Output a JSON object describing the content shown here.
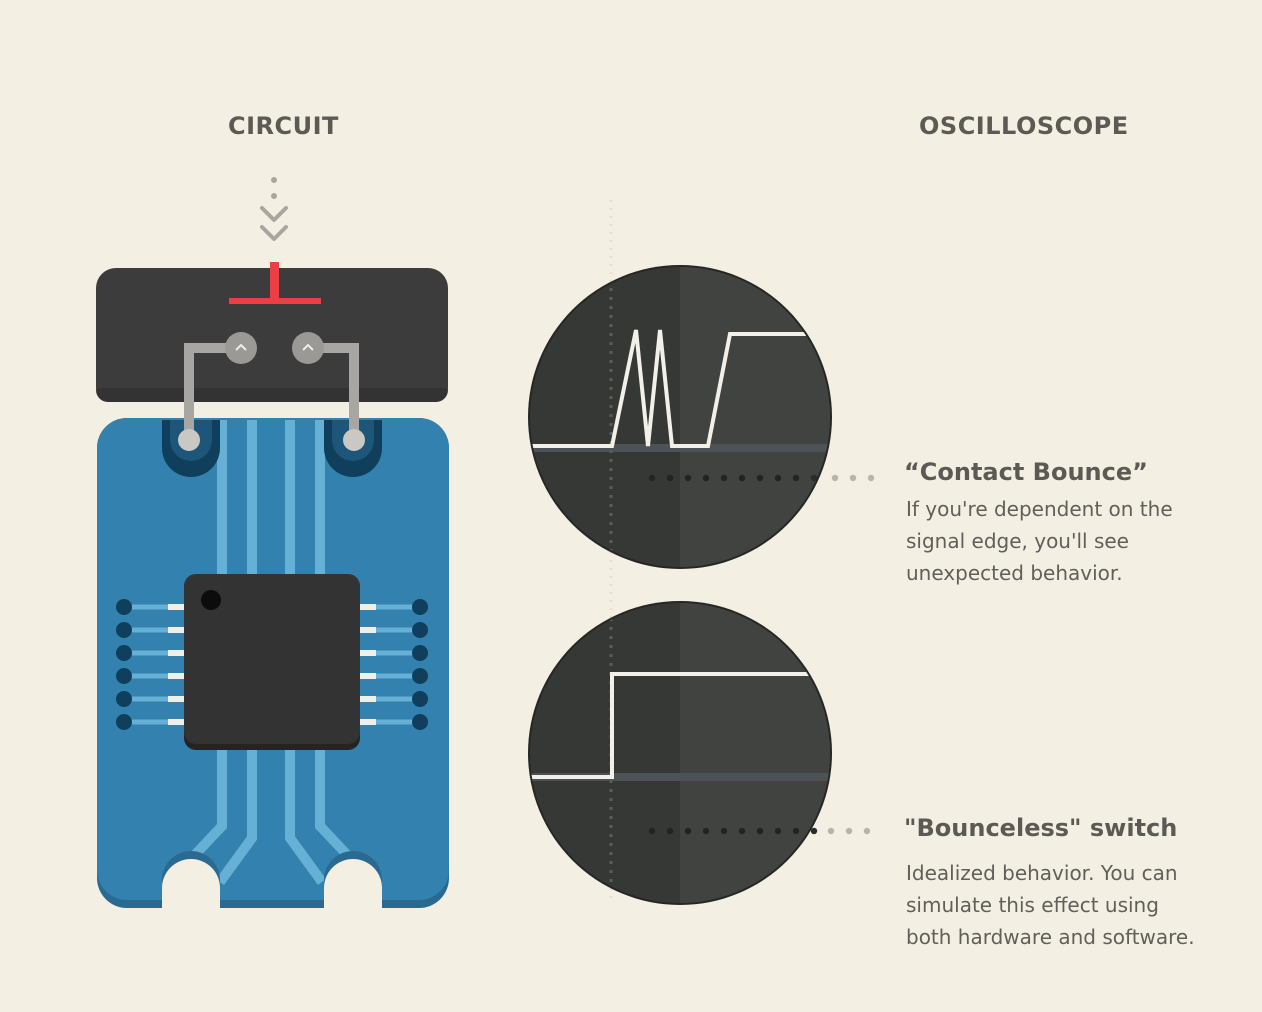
{
  "headings": {
    "circuit": "CIRCUIT",
    "oscilloscope": "OSCILLOSCOPE"
  },
  "callouts": [
    {
      "title": "“Contact Bounce”",
      "lines": [
        "If you're dependent on the",
        "signal edge, you'll see",
        "unexpected behavior."
      ]
    },
    {
      "title": "\"Bounceless\" switch",
      "lines": [
        "Idealized behavior. You can",
        "simulate this effect using",
        "both hardware and software."
      ]
    }
  ],
  "colors": {
    "background": "#f4efe3",
    "board": "#3281ae",
    "trace": "#66b0d6",
    "switch_housing": "#3c3c3c",
    "button_red": "#ea3f44",
    "chip": "#333333",
    "scope_screen": "#3a3d39",
    "signal": "#f2f0e8"
  },
  "icons": {
    "press_indicator": "double-chevron-down-icon",
    "switch_contacts": "contact-pin-icon"
  }
}
